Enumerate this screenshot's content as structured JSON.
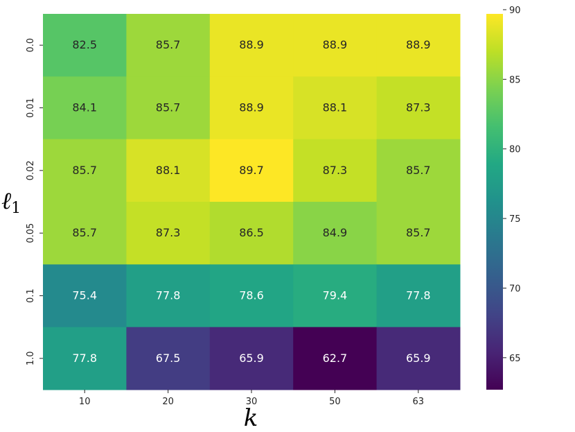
{
  "chart_data": {
    "type": "heatmap",
    "x": [
      "10",
      "20",
      "30",
      "50",
      "63"
    ],
    "y": [
      "0.0",
      "0.01",
      "0.02",
      "0.05",
      "0.1",
      "1.0"
    ],
    "values": [
      [
        82.5,
        85.7,
        88.9,
        88.9,
        88.9
      ],
      [
        84.1,
        85.7,
        88.9,
        88.1,
        87.3
      ],
      [
        85.7,
        88.1,
        89.7,
        87.3,
        85.7
      ],
      [
        85.7,
        87.3,
        86.5,
        84.9,
        85.7
      ],
      [
        75.4,
        77.8,
        78.6,
        79.4,
        77.8
      ],
      [
        77.8,
        67.5,
        65.9,
        62.7,
        65.9
      ]
    ],
    "xlabel": "k",
    "ylabel_main": "ℓ",
    "ylabel_sub": "1",
    "colorbar": {
      "min": 62.7,
      "max": 89.7,
      "ticks": [
        "65",
        "70",
        "75",
        "80",
        "85",
        "90"
      ],
      "colormap": "viridis"
    },
    "grid": false
  }
}
